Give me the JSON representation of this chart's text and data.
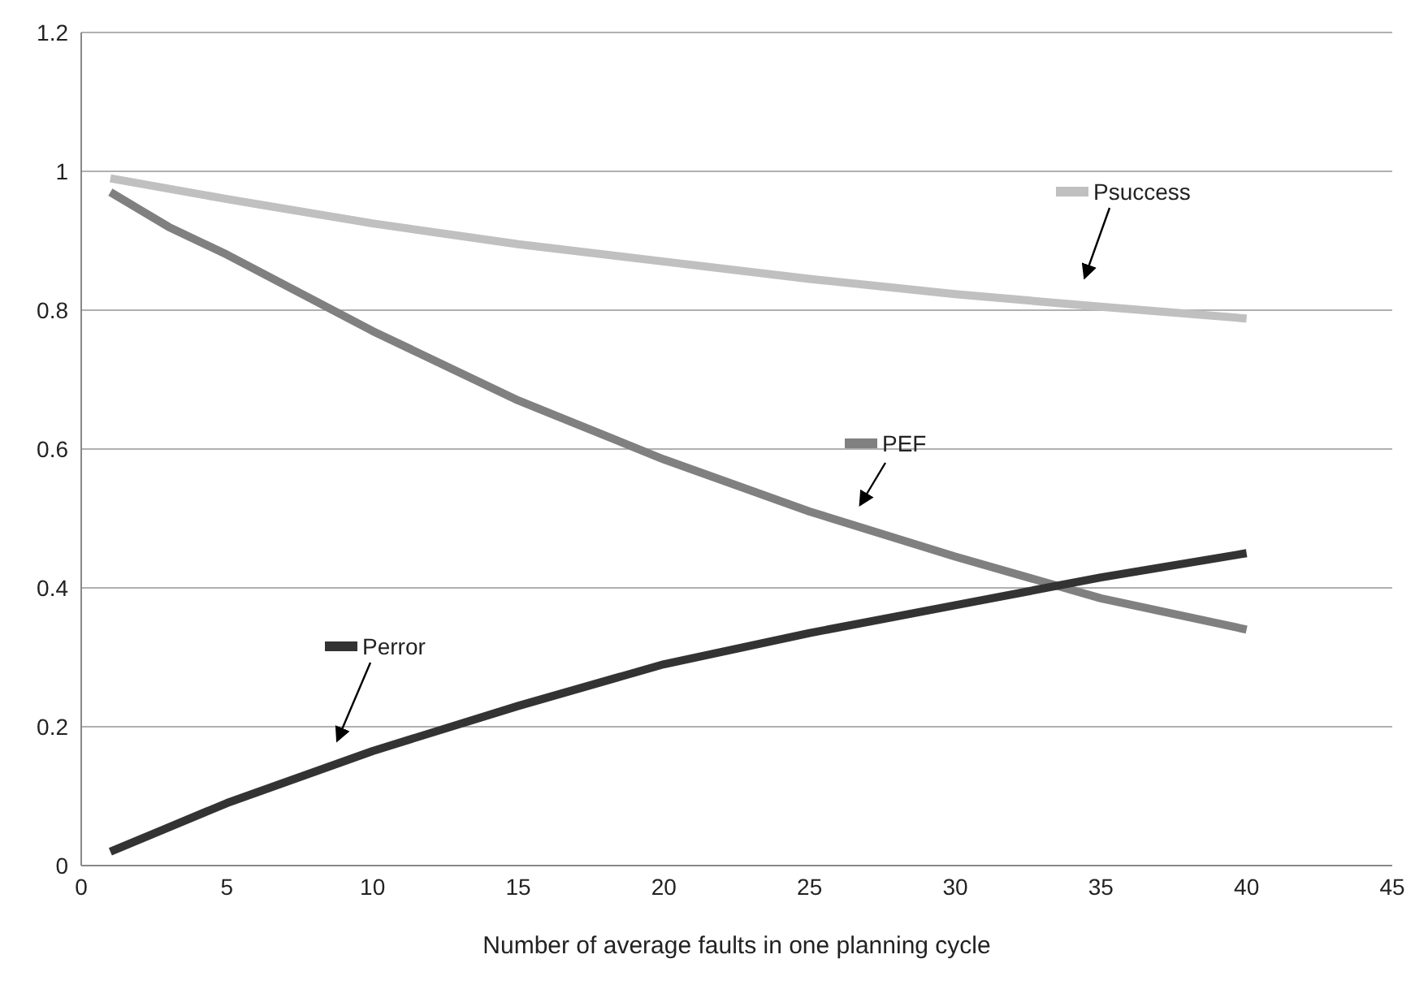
{
  "chart_data": {
    "type": "line",
    "xlabel": "Number of average faults in one planning cycle",
    "xlim": [
      0,
      45
    ],
    "xticks": [
      0,
      5,
      10,
      15,
      20,
      25,
      30,
      35,
      40,
      45
    ],
    "ylim": [
      0,
      1.2
    ],
    "yticks": [
      0,
      0.2,
      0.4,
      0.6,
      0.8,
      1,
      1.2
    ],
    "grid": "y",
    "legend": "top right",
    "marker": "none",
    "line_style": "solid",
    "series": [
      {
        "name": "Psuccess",
        "color": "#c0c0c0",
        "x": [
          1,
          5,
          10,
          15,
          20,
          25,
          30,
          35,
          40
        ],
        "values": [
          0.99,
          0.96,
          0.925,
          0.895,
          0.87,
          0.845,
          0.823,
          0.805,
          0.788
        ]
      },
      {
        "name": "PEF",
        "color": "#808080",
        "x": [
          1,
          3,
          5,
          10,
          15,
          20,
          25,
          30,
          35,
          40
        ],
        "values": [
          0.97,
          0.92,
          0.88,
          0.77,
          0.67,
          0.585,
          0.51,
          0.445,
          0.385,
          0.34
        ]
      },
      {
        "name": "Perror",
        "color": "#333333",
        "x": [
          1,
          5,
          10,
          15,
          20,
          25,
          30,
          35,
          40
        ],
        "values": [
          0.02,
          0.09,
          0.165,
          0.23,
          0.29,
          0.335,
          0.375,
          0.415,
          0.45
        ]
      }
    ]
  }
}
